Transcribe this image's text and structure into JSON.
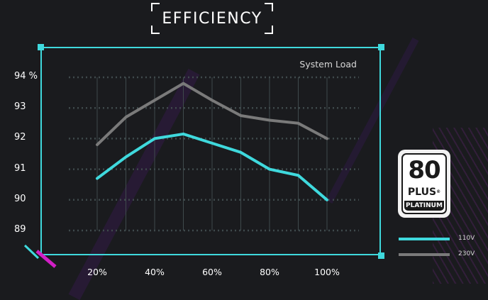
{
  "title": "EFFICIENCY",
  "badge": {
    "top": "80",
    "middle": "PLUS",
    "bottom": "PLATINUM",
    "mark": "®"
  },
  "colors": {
    "s110": "#3fd9dd",
    "s230": "#7a7a7a",
    "frame": "#3fd9dd",
    "grid": "#3f4a4c",
    "accent_pink": "#d21fc7"
  },
  "chart_data": {
    "type": "line",
    "title": "EFFICIENCY",
    "xlabel": "",
    "ylabel": "",
    "ylim": [
      88.9,
      94.3
    ],
    "yticks": [
      89,
      90,
      91,
      92,
      93,
      94
    ],
    "ytick_labels": [
      "89",
      "90",
      "91",
      "92",
      "93",
      "94 %"
    ],
    "x": [
      20,
      30,
      40,
      50,
      60,
      70,
      80,
      90,
      100
    ],
    "xticks": [
      20,
      40,
      60,
      80,
      100
    ],
    "xtick_labels": [
      "20%",
      "40%",
      "60%",
      "80%",
      "100%"
    ],
    "series_axis_label": "System Load",
    "grid": true,
    "legend": "bottom-right",
    "series": [
      {
        "name": "110V",
        "values": [
          90.7,
          91.4,
          92.0,
          92.15,
          91.85,
          91.55,
          91.0,
          90.8,
          90.0
        ]
      },
      {
        "name": "230V",
        "values": [
          91.8,
          92.7,
          93.25,
          93.8,
          93.25,
          92.75,
          92.6,
          92.5,
          92.0
        ]
      }
    ]
  }
}
